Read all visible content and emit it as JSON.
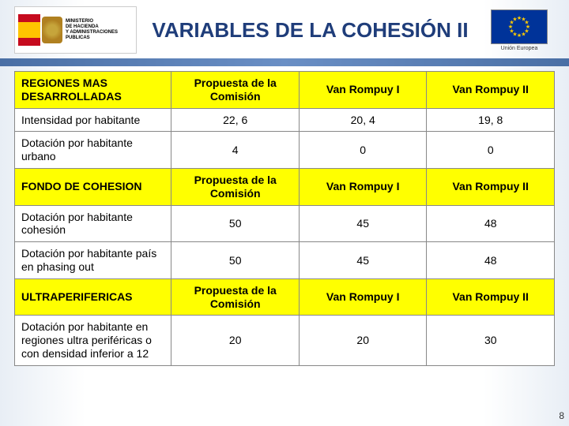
{
  "logo_left": {
    "line1": "MINISTERIO",
    "line2": "DE HACIENDA",
    "line3": "Y ADMINISTRACIONES",
    "line4": "PUBLICAS"
  },
  "title": "VARIABLES DE LA COHESIÓN II",
  "eu_label": "Unión Europea",
  "sections": [
    {
      "header": [
        "REGIONES MAS DESARROLLADAS",
        "Propuesta de la Comisión",
        "Van Rompuy I",
        "Van Rompuy II"
      ],
      "rows": [
        [
          "Intensidad por habitante",
          "22, 6",
          "20, 4",
          "19, 8"
        ],
        [
          "Dotación por habitante urbano",
          "4",
          "0",
          "0"
        ]
      ]
    },
    {
      "header": [
        "FONDO DE COHESION",
        "Propuesta de la Comisión",
        "Van Rompuy I",
        "Van Rompuy II"
      ],
      "rows": [
        [
          "Dotación por habitante cohesión",
          "50",
          "45",
          "48"
        ],
        [
          "Dotación por habitante país en phasing out",
          "50",
          "45",
          "48"
        ]
      ]
    },
    {
      "header": [
        "ULTRAPERIFERICAS",
        "Propuesta de la Comisión",
        "Van Rompuy I",
        "Van Rompuy II"
      ],
      "rows": [
        [
          "Dotación por habitante en regiones ultra periféricas o con densidad inferior a 12",
          "20",
          "20",
          "30"
        ]
      ]
    }
  ],
  "page_number": "8",
  "colors": {
    "header_bg": "#ffff00",
    "title_color": "#1f3d7a"
  }
}
